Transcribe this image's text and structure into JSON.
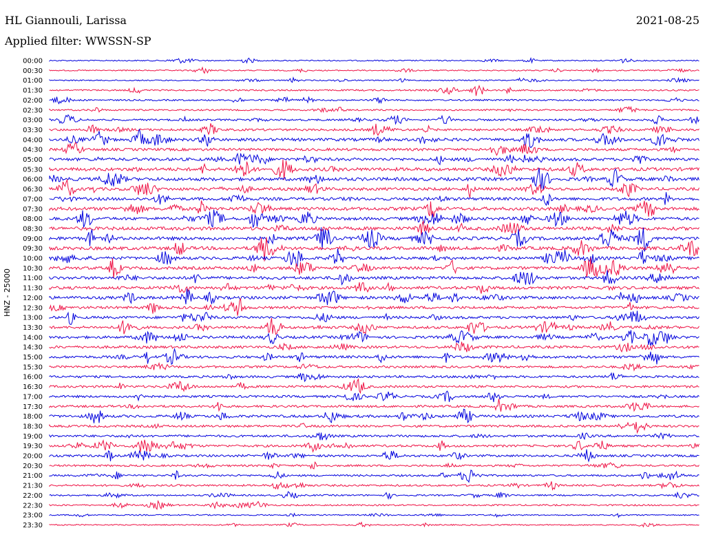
{
  "header": {
    "station": "HL Giannouli, Larissa",
    "filter": "Applied filter: WWSSN-SP",
    "date": "2021-08-25"
  },
  "colors": {
    "trace_a": "#0000dd",
    "trace_b": "#ee1144"
  },
  "chart_data": {
    "type": "line",
    "ylabel": "HNZ - 25000",
    "rows": [
      "00:00",
      "00:30",
      "01:00",
      "01:30",
      "02:00",
      "02:30",
      "03:00",
      "03:30",
      "04:00",
      "04:30",
      "05:00",
      "05:30",
      "06:00",
      "06:30",
      "07:00",
      "07:30",
      "08:00",
      "08:30",
      "09:00",
      "09:30",
      "10:00",
      "10:30",
      "11:00",
      "11:30",
      "12:00",
      "12:30",
      "13:00",
      "13:30",
      "14:00",
      "14:30",
      "15:00",
      "15:30",
      "16:00",
      "16:30",
      "17:00",
      "17:30",
      "18:00",
      "18:30",
      "19:00",
      "19:30",
      "20:00",
      "20:30",
      "21:00",
      "21:30",
      "22:00",
      "22:30",
      "23:00",
      "23:30"
    ],
    "noise_level": [
      1,
      1,
      1,
      2,
      2,
      2,
      3,
      4,
      6,
      5,
      6,
      7,
      7,
      6,
      6,
      7,
      6,
      7,
      7,
      7,
      6,
      6,
      6,
      6,
      6,
      5,
      5,
      5,
      5,
      5,
      5,
      4,
      4,
      4,
      4,
      4,
      5,
      4,
      4,
      4,
      4,
      3,
      3,
      3,
      2,
      2,
      1,
      1
    ]
  }
}
